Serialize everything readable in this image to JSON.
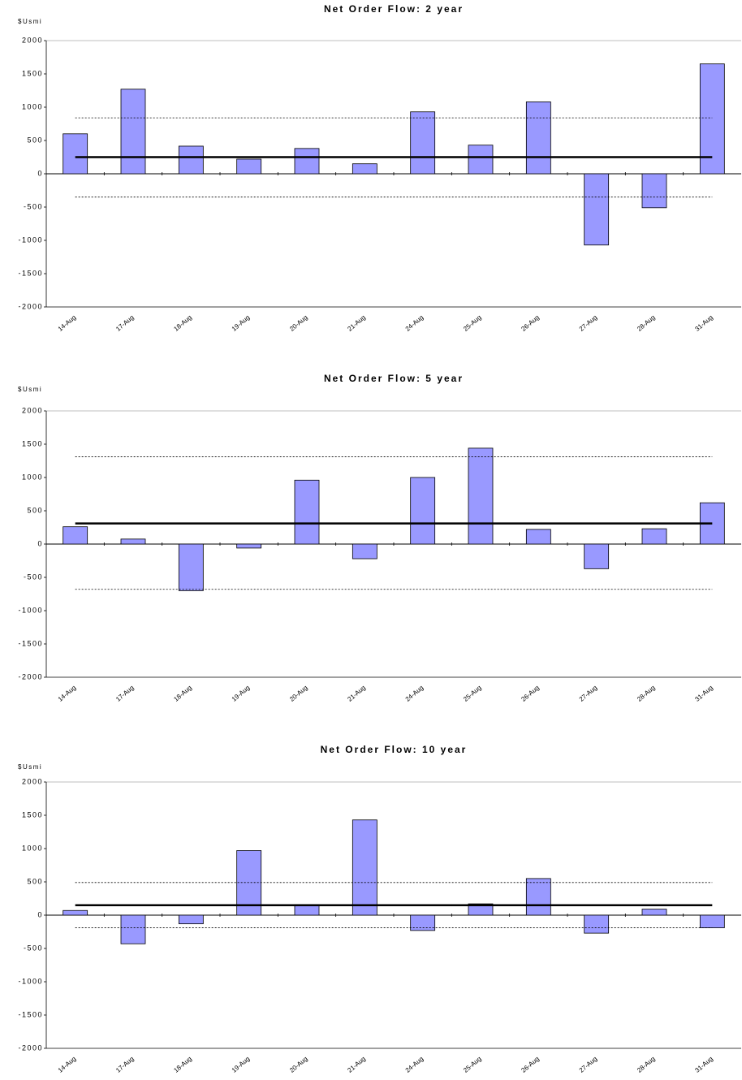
{
  "chart_data": [
    {
      "type": "bar",
      "title": "Net Order Flow: 2 year",
      "y_label": "$Usmi",
      "categories": [
        "14-Aug",
        "17-Aug",
        "18-Aug",
        "19-Aug",
        "20-Aug",
        "21-Aug",
        "24-Aug",
        "25-Aug",
        "26-Aug",
        "27-Aug",
        "28-Aug",
        "31-Aug"
      ],
      "values": [
        600,
        1270,
        415,
        220,
        380,
        150,
        930,
        430,
        1080,
        -1070,
        -510,
        1650
      ],
      "color": "#9999ff",
      "ylim": [
        -2000,
        2000
      ],
      "yticks": [
        -2000,
        -1500,
        -1000,
        -500,
        0,
        500,
        1000,
        1500,
        2000
      ],
      "reference_lines": [
        {
          "value": 250,
          "style": "solid"
        },
        {
          "value": 840,
          "style": "dotted"
        },
        {
          "value": -350,
          "style": "dotted"
        }
      ]
    },
    {
      "type": "bar",
      "title": "Net Order Flow: 5 year",
      "y_label": "$Usmi",
      "categories": [
        "14-Aug",
        "17-Aug",
        "18-Aug",
        "19-Aug",
        "20-Aug",
        "21-Aug",
        "24-Aug",
        "25-Aug",
        "26-Aug",
        "27-Aug",
        "28-Aug",
        "31-Aug"
      ],
      "values": [
        260,
        75,
        -700,
        -60,
        960,
        -220,
        1000,
        1440,
        220,
        -370,
        230,
        620
      ],
      "color": "#9999ff",
      "ylim": [
        -2000,
        2000
      ],
      "yticks": [
        -2000,
        -1500,
        -1000,
        -500,
        0,
        500,
        1000,
        1500,
        2000
      ],
      "reference_lines": [
        {
          "value": 310,
          "style": "solid"
        },
        {
          "value": 1310,
          "style": "dotted"
        },
        {
          "value": -680,
          "style": "dotted"
        }
      ]
    },
    {
      "type": "bar",
      "title": "Net Order Flow: 10 year",
      "y_label": "$Usmi",
      "categories": [
        "14-Aug",
        "17-Aug",
        "18-Aug",
        "19-Aug",
        "20-Aug",
        "21-Aug",
        "24-Aug",
        "25-Aug",
        "26-Aug",
        "27-Aug",
        "28-Aug",
        "31-Aug"
      ],
      "values": [
        70,
        -430,
        -130,
        970,
        160,
        1430,
        -230,
        170,
        550,
        -270,
        90,
        -190
      ],
      "color": "#9999ff",
      "ylim": [
        -2000,
        2000
      ],
      "yticks": [
        -2000,
        -1500,
        -1000,
        -500,
        0,
        500,
        1000,
        1500,
        2000
      ],
      "reference_lines": [
        {
          "value": 150,
          "style": "solid"
        },
        {
          "value": 490,
          "style": "dotted"
        },
        {
          "value": -190,
          "style": "dotted"
        }
      ]
    }
  ]
}
